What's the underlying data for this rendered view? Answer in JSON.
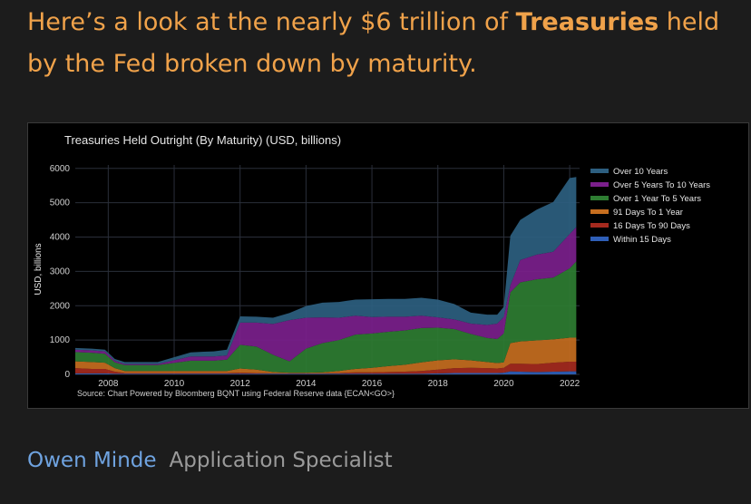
{
  "headline": {
    "part1": "Here’s a look at the nearly $6 trillion of ",
    "bold": "Treasuries",
    "part2": " held by the Fed broken down by maturity."
  },
  "footer": {
    "author": "Owen Minde",
    "role": "Application Specialist"
  },
  "chart_data": {
    "type": "area",
    "stacked": true,
    "title": "Treasuries Held Outright (By Maturity) (USD, billions)",
    "ylabel": "USD, billions",
    "xlabel": "",
    "source": "Source: Chart Powered by Bloomberg BQNT using Federal Reserve data   {ECAN<GO>}",
    "xlim": [
      2007.0,
      2022.3
    ],
    "ylim": [
      0,
      6100
    ],
    "yticks": [
      0,
      1000,
      2000,
      3000,
      4000,
      5000,
      6000
    ],
    "xticks": [
      2008,
      2010,
      2012,
      2014,
      2016,
      2018,
      2020,
      2022
    ],
    "grid": true,
    "legend_position": "right",
    "x": [
      2007.0,
      2007.5,
      2007.9,
      2008.2,
      2008.5,
      2009.0,
      2009.5,
      2010.5,
      2010.9,
      2011.2,
      2011.6,
      2012.0,
      2012.5,
      2013.0,
      2013.5,
      2014.0,
      2014.5,
      2015.0,
      2015.5,
      2016.0,
      2016.5,
      2017.0,
      2017.5,
      2018.0,
      2018.5,
      2019.0,
      2019.5,
      2019.8,
      2020.0,
      2020.2,
      2020.5,
      2021.0,
      2021.5,
      2022.0,
      2022.2
    ],
    "series": [
      {
        "name": "Within 15 Days",
        "color": "#2f5fb8",
        "values": [
          30,
          30,
          30,
          20,
          20,
          20,
          20,
          20,
          20,
          20,
          20,
          20,
          20,
          20,
          20,
          20,
          20,
          20,
          20,
          20,
          20,
          20,
          20,
          30,
          40,
          40,
          40,
          40,
          50,
          90,
          80,
          70,
          80,
          90,
          90
        ]
      },
      {
        "name": "16 Days To 90 Days",
        "color": "#a52a1e",
        "values": [
          150,
          130,
          130,
          60,
          20,
          20,
          20,
          20,
          20,
          20,
          20,
          30,
          20,
          10,
          10,
          10,
          10,
          20,
          40,
          40,
          50,
          60,
          80,
          110,
          140,
          150,
          140,
          130,
          140,
          220,
          230,
          230,
          260,
          280,
          280
        ]
      },
      {
        "name": "91 Days To 1 Year",
        "color": "#c66e1f",
        "values": [
          200,
          200,
          180,
          100,
          60,
          60,
          60,
          60,
          60,
          60,
          60,
          120,
          100,
          40,
          20,
          20,
          30,
          60,
          100,
          130,
          170,
          200,
          250,
          270,
          260,
          220,
          180,
          160,
          160,
          600,
          650,
          690,
          680,
          700,
          700
        ]
      },
      {
        "name": "Over 1 Year To 5 Years",
        "color": "#2e7d32",
        "values": [
          270,
          270,
          260,
          170,
          170,
          170,
          170,
          300,
          300,
          300,
          330,
          690,
          670,
          500,
          330,
          700,
          850,
          900,
          1000,
          1000,
          1000,
          1000,
          1000,
          950,
          880,
          770,
          700,
          700,
          840,
          1480,
          1720,
          1780,
          1800,
          2020,
          2220
        ]
      },
      {
        "name": "Over 5 Years To 10 Years",
        "color": "#7b1f8c",
        "values": [
          70,
          70,
          70,
          50,
          30,
          30,
          30,
          120,
          120,
          120,
          120,
          650,
          700,
          900,
          1200,
          900,
          750,
          650,
          550,
          480,
          440,
          400,
          360,
          300,
          280,
          300,
          380,
          450,
          480,
          200,
          650,
          720,
          750,
          1000,
          1000
        ]
      },
      {
        "name": "Over 10 Years",
        "color": "#2d5f80",
        "values": [
          50,
          50,
          50,
          50,
          60,
          60,
          60,
          120,
          140,
          150,
          170,
          180,
          170,
          180,
          210,
          340,
          430,
          460,
          470,
          520,
          520,
          520,
          520,
          520,
          450,
          320,
          300,
          260,
          300,
          1450,
          1170,
          1310,
          1450,
          1630,
          1460
        ]
      }
    ]
  }
}
